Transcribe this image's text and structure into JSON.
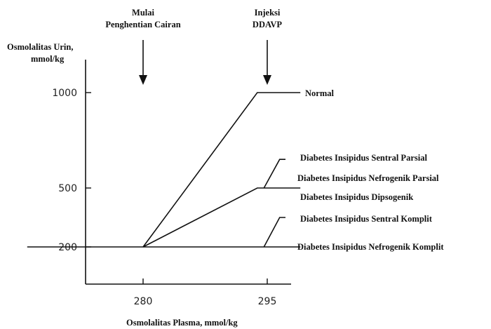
{
  "chart_data": {
    "type": "line",
    "title": "",
    "ylabel_lines": [
      "Osmolalitas Urin,",
      "mmol/kg"
    ],
    "xlabel": "Osmolalitas Plasma, mmol/kg",
    "x_ticks": [
      {
        "value": 280,
        "label": "280"
      },
      {
        "value": 295,
        "label": "295"
      }
    ],
    "y_ticks": [
      {
        "value": 200,
        "label": "200"
      },
      {
        "value": 500,
        "label": "500"
      },
      {
        "value": 1000,
        "label": "1000"
      }
    ],
    "annotations": [
      {
        "id": "start",
        "x": 280,
        "lines": [
          "Mulai",
          "Penghentian Cairan"
        ]
      },
      {
        "id": "ddavp",
        "x": 295,
        "lines": [
          "Injeksi",
          "DDAVP"
        ]
      }
    ],
    "series": [
      {
        "key": "baseline",
        "name": "",
        "points": [
          [
            266,
            200
          ],
          [
            280,
            200
          ]
        ]
      },
      {
        "key": "normal",
        "name": "Normal",
        "points": [
          [
            280,
            200
          ],
          [
            293.8,
            1000
          ],
          [
            299,
            1000
          ]
        ]
      },
      {
        "key": "dipsogenik",
        "name": "Diabetes Insipidus Dipsogenik",
        "points": [
          [
            280,
            200
          ],
          [
            293.8,
            500
          ],
          [
            299,
            500
          ]
        ]
      },
      {
        "key": "sentral_parsial",
        "name": "Diabetes Insipidus Sentral Parsial",
        "points": [
          [
            294.6,
            500
          ],
          [
            296.5,
            650
          ],
          [
            297.2,
            650
          ]
        ]
      },
      {
        "key": "nefrogenik_parsial",
        "name": "Diabetes Insipidus Nefrogenik Parsial",
        "points": []
      },
      {
        "key": "nefrogenik_komplit",
        "name": "Diabetes Insipidus Nefrogenik Komplit",
        "points": [
          [
            280,
            200
          ],
          [
            299,
            200
          ]
        ]
      },
      {
        "key": "sentral_komplit",
        "name": "Diabetes Insipidus Sentral Komplit",
        "points": [
          [
            294.6,
            200
          ],
          [
            296.5,
            350
          ],
          [
            297.2,
            350
          ]
        ]
      }
    ]
  }
}
